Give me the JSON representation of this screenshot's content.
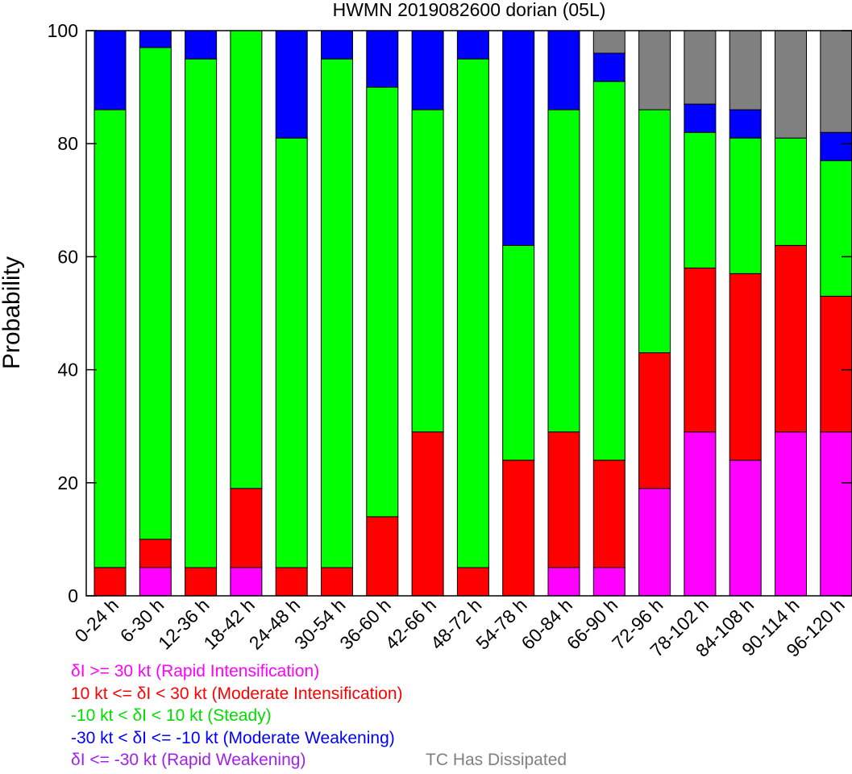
{
  "chart_data": {
    "type": "bar",
    "stacked": true,
    "title": "HWMN 2019082600 dorian (05L)",
    "ylabel": "Probability",
    "ylim": [
      0,
      100
    ],
    "yticks": [
      0,
      20,
      40,
      60,
      80,
      100
    ],
    "categories": [
      "0-24 h",
      "6-30 h",
      "12-36 h",
      "18-42 h",
      "24-48 h",
      "30-54 h",
      "36-60 h",
      "42-66 h",
      "48-72 h",
      "54-78 h",
      "60-84 h",
      "66-90 h",
      "72-96 h",
      "78-102 h",
      "84-108 h",
      "90-114 h",
      "96-120 h"
    ],
    "series": [
      {
        "name": "δI >= 30 kt (Rapid Intensification)",
        "color": "#ff00ff",
        "values": [
          0,
          5,
          0,
          5,
          0,
          0,
          0,
          0,
          0,
          0,
          5,
          5,
          19,
          29,
          24,
          29,
          29
        ]
      },
      {
        "name": "10 kt <= δI < 30 kt (Moderate Intensification)",
        "color": "#ff0000",
        "values": [
          5,
          5,
          5,
          14,
          5,
          5,
          14,
          29,
          5,
          24,
          24,
          19,
          24,
          29,
          33,
          33,
          24
        ]
      },
      {
        "name": "-10 kt < δI < 10 kt (Steady)",
        "color": "#00ff00",
        "values": [
          81,
          87,
          90,
          81,
          76,
          90,
          76,
          57,
          90,
          38,
          57,
          67,
          43,
          24,
          24,
          19,
          24
        ]
      },
      {
        "name": "-30 kt < δI <= -10 kt (Moderate Weakening)",
        "color": "#0000ff",
        "values": [
          14,
          3,
          5,
          0,
          19,
          5,
          10,
          14,
          5,
          38,
          14,
          5,
          0,
          5,
          5,
          0,
          5
        ]
      },
      {
        "name": "δI <= -30 kt (Rapid Weakening)",
        "color": "#a020f0",
        "values": [
          0,
          0,
          0,
          0,
          0,
          0,
          0,
          0,
          0,
          0,
          0,
          0,
          0,
          0,
          0,
          0,
          0
        ]
      },
      {
        "name": "TC Has Dissipated",
        "color": "#808080",
        "values": [
          0,
          0,
          0,
          0,
          0,
          0,
          0,
          0,
          0,
          0,
          0,
          4,
          14,
          13,
          14,
          19,
          18
        ]
      }
    ]
  }
}
